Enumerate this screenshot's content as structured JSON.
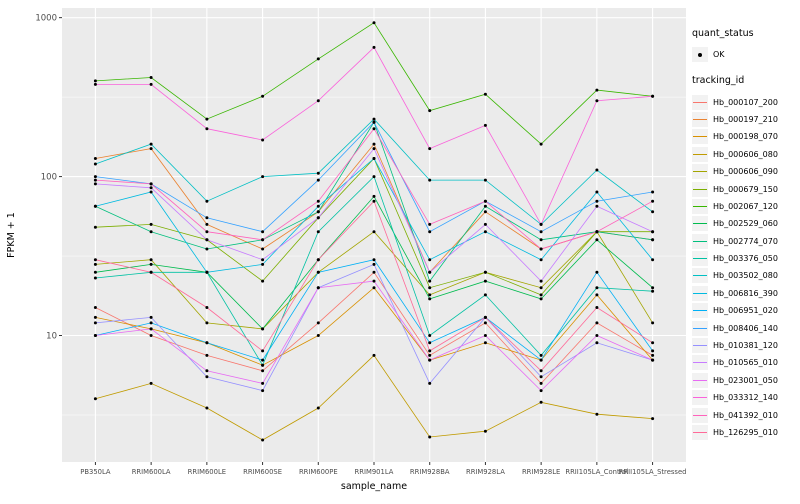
{
  "chart_data": {
    "type": "line",
    "title": "",
    "xlabel": "sample_name",
    "ylabel": "FPKM + 1",
    "y_scale": "log10",
    "ylim": [
      1.6,
      1150
    ],
    "y_ticks": [
      10,
      100,
      1000
    ],
    "y_minor_ticks": [
      3.162,
      31.62,
      316.2
    ],
    "grid": true,
    "panel_background": "#EBEBEB",
    "grid_color": "#FFFFFF",
    "tick_label_color": "#4D4D4D",
    "point_color": "#000000",
    "legend_position": "right",
    "categories": [
      "PB350LA",
      "RRIM600LA",
      "RRIM600LE",
      "RRIM600SE",
      "RRIM600PE",
      "RRIM901LA",
      "RRIM928BA",
      "RRIM928LA",
      "RRIM928LE",
      "RRII105LA_Control",
      "RRII105LA_Stressed"
    ],
    "legend": {
      "quant_status_title": "quant_status",
      "quant_status_items": [
        {
          "label": "OK",
          "shape": "point",
          "color": "#000000"
        }
      ],
      "tracking_id_title": "tracking_id"
    },
    "series": [
      {
        "name": "Hb_000107_200",
        "color": "#F8766D",
        "values": [
          15,
          10,
          7.5,
          6,
          12,
          25,
          7.5,
          12,
          5,
          12,
          7.5
        ]
      },
      {
        "name": "Hb_000197_210",
        "color": "#EA8331",
        "values": [
          130,
          150,
          50,
          35,
          60,
          160,
          25,
          60,
          35,
          45,
          40
        ]
      },
      {
        "name": "Hb_000198_070",
        "color": "#D89000",
        "values": [
          13,
          11,
          9,
          6.5,
          10,
          20,
          7,
          9,
          7,
          18,
          7
        ]
      },
      {
        "name": "Hb_000606_080",
        "color": "#C09B00",
        "values": [
          4,
          5,
          3.5,
          2.2,
          3.5,
          7.5,
          2.3,
          2.5,
          3.8,
          3.2,
          3
        ]
      },
      {
        "name": "Hb_000606_090",
        "color": "#A3A500",
        "values": [
          28,
          30,
          12,
          11,
          25,
          45,
          18,
          25,
          20,
          45,
          12
        ]
      },
      {
        "name": "Hb_000679_150",
        "color": "#7CAE00",
        "values": [
          48,
          50,
          40,
          22,
          55,
          130,
          20,
          25,
          18,
          45,
          45
        ]
      },
      {
        "name": "Hb_002067_120",
        "color": "#39B600",
        "values": [
          400,
          420,
          230,
          320,
          550,
          930,
          260,
          330,
          160,
          350,
          320
        ]
      },
      {
        "name": "Hb_002529_060",
        "color": "#00BB4E",
        "values": [
          25,
          28,
          25,
          11,
          30,
          75,
          17,
          22,
          17,
          40,
          20
        ]
      },
      {
        "name": "Hb_002774_070",
        "color": "#00BF7D",
        "values": [
          65,
          45,
          35,
          40,
          60,
          220,
          22,
          65,
          40,
          45,
          40
        ]
      },
      {
        "name": "Hb_003376_050",
        "color": "#00C1A3",
        "values": [
          23,
          25,
          25,
          6.5,
          45,
          100,
          10,
          18,
          7.5,
          20,
          19
        ]
      },
      {
        "name": "Hb_003502_080",
        "color": "#00BFC4",
        "values": [
          120,
          160,
          70,
          100,
          105,
          230,
          95,
          95,
          50,
          110,
          60
        ]
      },
      {
        "name": "Hb_006816_390",
        "color": "#00BAE0",
        "values": [
          65,
          80,
          25,
          28,
          65,
          130,
          30,
          45,
          30,
          80,
          30
        ]
      },
      {
        "name": "Hb_006951_020",
        "color": "#00B0F6",
        "values": [
          10,
          12,
          9,
          7,
          25,
          30,
          9,
          13,
          7,
          25,
          8
        ]
      },
      {
        "name": "Hb_008406_140",
        "color": "#35A2FF",
        "values": [
          100,
          90,
          55,
          45,
          95,
          220,
          45,
          70,
          45,
          70,
          80
        ]
      },
      {
        "name": "Hb_010381_120",
        "color": "#9590FF",
        "values": [
          12,
          13,
          5.5,
          4.5,
          20,
          28,
          5,
          13,
          5.5,
          9,
          7
        ]
      },
      {
        "name": "Hb_010565_010",
        "color": "#C77CFF",
        "values": [
          90,
          85,
          40,
          30,
          55,
          150,
          25,
          50,
          22,
          65,
          45
        ]
      },
      {
        "name": "Hb_023001_050",
        "color": "#E76BF3",
        "values": [
          10,
          11,
          6,
          5,
          20,
          22,
          7,
          10,
          4.5,
          10,
          7
        ]
      },
      {
        "name": "Hb_033312_140",
        "color": "#FA62DB",
        "values": [
          380,
          380,
          200,
          170,
          300,
          650,
          150,
          210,
          50,
          300,
          320
        ]
      },
      {
        "name": "Hb_041392_010",
        "color": "#FF62BC",
        "values": [
          95,
          90,
          45,
          40,
          70,
          200,
          50,
          70,
          35,
          45,
          70
        ]
      },
      {
        "name": "Hb_126295_010",
        "color": "#FF6A98",
        "values": [
          30,
          25,
          15,
          8,
          30,
          70,
          8,
          13,
          6,
          15,
          9
        ]
      }
    ]
  }
}
